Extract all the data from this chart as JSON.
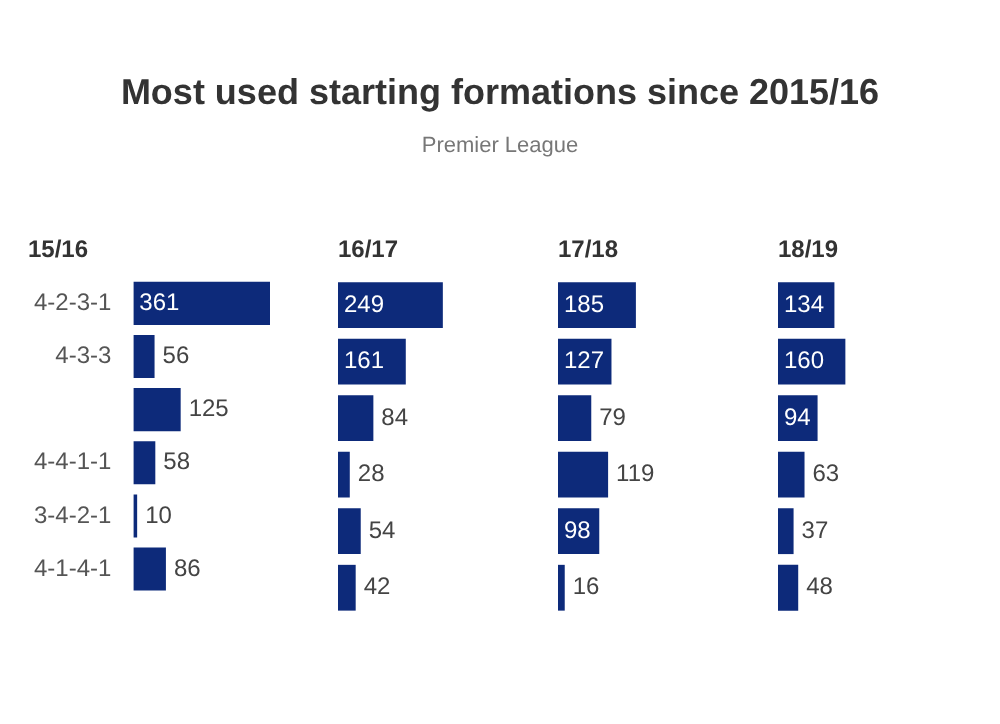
{
  "chart_data": [
    {
      "type": "other",
      "title": "Most used starting formations since 2015/16",
      "subtitle": "Premier League"
    },
    {
      "type": "bar",
      "orientation": "horizontal",
      "title": "15/16",
      "categories": [
        "4-2-3-1",
        "4-3-3",
        null,
        "4-4-1-1",
        "3-4-2-1",
        "4-1-4-1"
      ],
      "values": [
        361,
        56,
        125,
        58,
        10,
        86
      ],
      "color": "#0d2a7a",
      "data_labels": true,
      "tick_labels": "y"
    },
    {
      "type": "bar",
      "orientation": "horizontal",
      "title": "16/17",
      "values": [
        249,
        161,
        84,
        28,
        54,
        42
      ],
      "color": "#0d2a7a",
      "data_labels": true,
      "tick_labels": false
    },
    {
      "type": "bar",
      "orientation": "horizontal",
      "title": "17/18",
      "values": [
        185,
        127,
        79,
        119,
        98,
        16
      ],
      "color": "#0d2a7a",
      "data_labels": true,
      "tick_labels": false
    },
    {
      "type": "bar",
      "orientation": "horizontal",
      "title": "18/19",
      "values": [
        134,
        160,
        94,
        63,
        37,
        48
      ],
      "color": "#0d2a7a",
      "data_labels": true,
      "tick_labels": false
    }
  ]
}
